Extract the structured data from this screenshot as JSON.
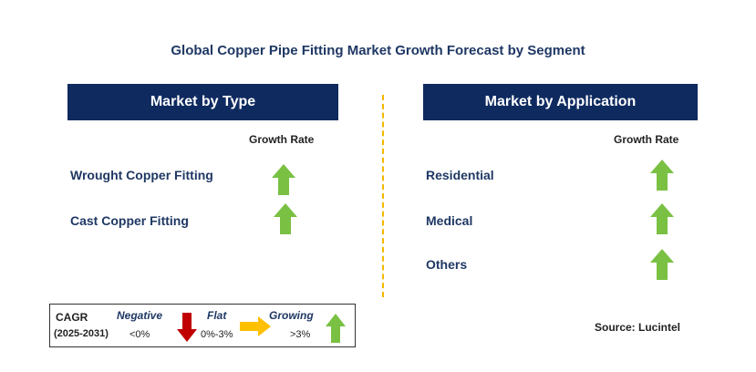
{
  "title": "Global Copper Pipe Fitting Market Growth Forecast by Segment",
  "left_panel": {
    "header": "Market by Type",
    "rate_label": "Growth Rate",
    "rows": [
      {
        "label": "Wrought Copper Fitting",
        "trend": "growing"
      },
      {
        "label": "Cast Copper Fitting",
        "trend": "growing"
      }
    ]
  },
  "right_panel": {
    "header": "Market by Application",
    "rate_label": "Growth Rate",
    "rows": [
      {
        "label": "Residential",
        "trend": "growing"
      },
      {
        "label": "Medical",
        "trend": "growing"
      },
      {
        "label": "Others",
        "trend": "growing"
      }
    ]
  },
  "legend": {
    "cagr": "CAGR",
    "period": "(2025-2031)",
    "negative": {
      "label": "Negative",
      "range": "<0%",
      "icon": "down-arrow-icon",
      "color": "#c00000"
    },
    "flat": {
      "label": "Flat",
      "range": "0%-3%",
      "icon": "right-arrow-icon",
      "color": "#ffc000"
    },
    "growing": {
      "label": "Growing",
      "range": ">3%",
      "icon": "up-arrow-icon",
      "color": "#7ac143"
    }
  },
  "source": "Source: Lucintel",
  "colors": {
    "header_bg": "#0f2a5f",
    "text": "#1f3864",
    "divider": "#f5b700",
    "up": "#7ac143"
  }
}
